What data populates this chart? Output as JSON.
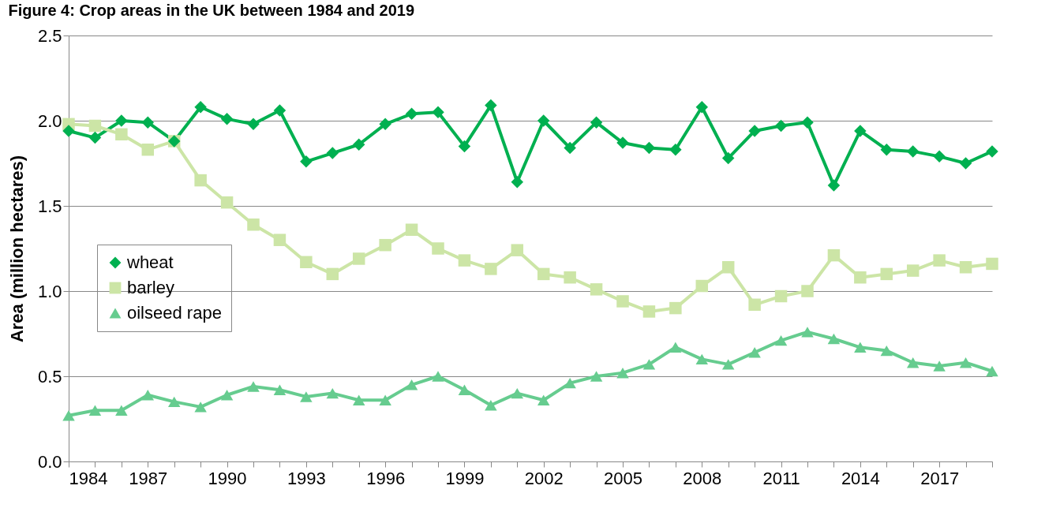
{
  "chart_data": {
    "type": "line",
    "title": "Figure 4: Crop areas in the UK between 1984 and 2019",
    "ylabel": "Area (million hectares)",
    "x": [
      1984,
      1985,
      1986,
      1987,
      1988,
      1989,
      1990,
      1991,
      1992,
      1993,
      1994,
      1995,
      1996,
      1997,
      1998,
      1999,
      2000,
      2001,
      2002,
      2003,
      2004,
      2005,
      2006,
      2007,
      2008,
      2009,
      2010,
      2011,
      2012,
      2013,
      2014,
      2015,
      2016,
      2017,
      2018,
      2019
    ],
    "series": [
      {
        "name": "wheat",
        "color": "#00b050",
        "marker": "diamond",
        "values": [
          1.94,
          1.9,
          2.0,
          1.99,
          1.88,
          2.08,
          2.01,
          1.98,
          2.06,
          1.76,
          1.81,
          1.86,
          1.98,
          2.04,
          2.05,
          1.85,
          2.09,
          1.64,
          2.0,
          1.84,
          1.99,
          1.87,
          1.84,
          1.83,
          2.08,
          1.78,
          1.94,
          1.97,
          1.99,
          1.62,
          1.94,
          1.83,
          1.82,
          1.79,
          1.75,
          1.82
        ]
      },
      {
        "name": "barley",
        "color": "#cce5a6",
        "marker": "square",
        "values": [
          1.98,
          1.97,
          1.92,
          1.83,
          1.88,
          1.65,
          1.52,
          1.39,
          1.3,
          1.17,
          1.1,
          1.19,
          1.27,
          1.36,
          1.25,
          1.18,
          1.13,
          1.24,
          1.1,
          1.08,
          1.01,
          0.94,
          0.88,
          0.9,
          1.03,
          1.14,
          0.92,
          0.97,
          1.0,
          1.21,
          1.08,
          1.1,
          1.12,
          1.18,
          1.14,
          1.16
        ]
      },
      {
        "name": "oilseed rape",
        "color": "#66cc8f",
        "marker": "triangle",
        "values": [
          0.27,
          0.3,
          0.3,
          0.39,
          0.35,
          0.32,
          0.39,
          0.44,
          0.42,
          0.38,
          0.4,
          0.36,
          0.36,
          0.45,
          0.5,
          0.42,
          0.33,
          0.4,
          0.36,
          0.46,
          0.5,
          0.52,
          0.57,
          0.67,
          0.6,
          0.57,
          0.64,
          0.71,
          0.76,
          0.72,
          0.67,
          0.65,
          0.58,
          0.56,
          0.58,
          0.53
        ]
      }
    ],
    "xlim": [
      1984,
      2019
    ],
    "xticks": [
      1984,
      {
        "value": 1985,
        "label": null
      },
      {
        "value": 1986,
        "label": null
      },
      1987,
      {
        "value": 1988,
        "label": null
      },
      {
        "value": 1989,
        "label": null
      },
      1990,
      {
        "value": 1991,
        "label": null
      },
      {
        "value": 1992,
        "label": null
      },
      1993,
      {
        "value": 1994,
        "label": null
      },
      {
        "value": 1995,
        "label": null
      },
      1996,
      {
        "value": 1997,
        "label": null
      },
      {
        "value": 1998,
        "label": null
      },
      1999,
      {
        "value": 2000,
        "label": null
      },
      {
        "value": 2001,
        "label": null
      },
      2002,
      {
        "value": 2003,
        "label": null
      },
      {
        "value": 2004,
        "label": null
      },
      2005,
      {
        "value": 2006,
        "label": null
      },
      {
        "value": 2007,
        "label": null
      },
      2008,
      {
        "value": 2009,
        "label": null
      },
      {
        "value": 2010,
        "label": null
      },
      2011,
      {
        "value": 2012,
        "label": null
      },
      {
        "value": 2013,
        "label": null
      },
      2014,
      {
        "value": 2015,
        "label": null
      },
      {
        "value": 2016,
        "label": null
      },
      2017,
      {
        "value": 2018,
        "label": null
      },
      {
        "value": 2019,
        "label": null
      }
    ],
    "ylim": [
      0,
      2.5
    ],
    "yticks": [
      {
        "value": 0,
        "label": "0.0"
      },
      {
        "value": 0.5,
        "label": "0.5"
      },
      {
        "value": 1,
        "label": "1.0"
      },
      {
        "value": 1.5,
        "label": "1.5"
      },
      {
        "value": 2,
        "label": "2.0"
      },
      {
        "value": 2.5,
        "label": "2.5"
      }
    ],
    "grid": "y",
    "legend": "left",
    "line_style": "solid"
  }
}
